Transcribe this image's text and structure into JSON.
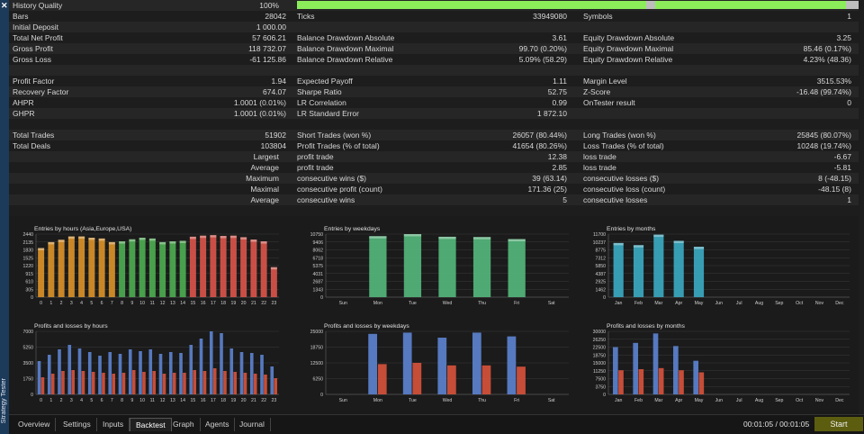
{
  "sidebar": {
    "close_label": "✕",
    "title": "Strategy Tester"
  },
  "stats": [
    {
      "c": [
        {
          "t": "History Quality",
          "x": 4
        },
        {
          "t": "100%",
          "x": 300,
          "w": 0,
          "r": true
        }
      ],
      "qbar": true
    },
    {
      "c": [
        {
          "t": "Bars"
        },
        {
          "t": "28042"
        },
        {
          "t": "Ticks"
        },
        {
          "t": "33949080"
        },
        {
          "t": "Symbols"
        },
        {
          "t": "1"
        }
      ]
    },
    {
      "c": [
        {
          "t": "Initial Deposit"
        },
        {
          "t": "1 000.00"
        }
      ]
    },
    {
      "c": [
        {
          "t": "Total Net Profit"
        },
        {
          "t": "57 606.21"
        },
        {
          "t": "Balance Drawdown Absolute"
        },
        {
          "t": "3.61"
        },
        {
          "t": "Equity Drawdown Absolute"
        },
        {
          "t": "3.25"
        }
      ]
    },
    {
      "c": [
        {
          "t": "Gross Profit"
        },
        {
          "t": "118 732.07"
        },
        {
          "t": "Balance Drawdown Maximal"
        },
        {
          "t": "99.70 (0.20%)"
        },
        {
          "t": "Equity Drawdown Maximal"
        },
        {
          "t": "85.46 (0.17%)"
        }
      ]
    },
    {
      "c": [
        {
          "t": "Gross Loss"
        },
        {
          "t": "-61 125.86"
        },
        {
          "t": "Balance Drawdown Relative"
        },
        {
          "t": "5.09% (58.29)"
        },
        {
          "t": "Equity Drawdown Relative"
        },
        {
          "t": "4.23% (48.36)"
        }
      ]
    },
    {
      "c": []
    },
    {
      "c": [
        {
          "t": "Profit Factor"
        },
        {
          "t": "1.94"
        },
        {
          "t": "Expected Payoff"
        },
        {
          "t": "1.11"
        },
        {
          "t": "Margin Level"
        },
        {
          "t": "3515.53%"
        }
      ]
    },
    {
      "c": [
        {
          "t": "Recovery Factor"
        },
        {
          "t": "674.07"
        },
        {
          "t": "Sharpe Ratio"
        },
        {
          "t": "52.75"
        },
        {
          "t": "Z-Score"
        },
        {
          "t": "-16.48 (99.74%)"
        }
      ]
    },
    {
      "c": [
        {
          "t": "AHPR"
        },
        {
          "t": "1.0001 (0.01%)"
        },
        {
          "t": "LR Correlation"
        },
        {
          "t": "0.99"
        },
        {
          "t": "OnTester result"
        },
        {
          "t": "0"
        }
      ]
    },
    {
      "c": [
        {
          "t": "GHPR"
        },
        {
          "t": "1.0001 (0.01%)"
        },
        {
          "t": "LR Standard Error"
        },
        {
          "t": "1 872.10"
        }
      ]
    },
    {
      "c": []
    },
    {
      "c": [
        {
          "t": "Total Trades"
        },
        {
          "t": "51902"
        },
        {
          "t": "Short Trades (won %)"
        },
        {
          "t": "26057 (80.44%)"
        },
        {
          "t": "Long Trades (won %)"
        },
        {
          "t": "25845 (80.07%)"
        }
      ]
    },
    {
      "c": [
        {
          "t": "Total Deals"
        },
        {
          "t": "103804"
        },
        {
          "t": "Profit Trades (% of total)"
        },
        {
          "t": "41654 (80.26%)"
        },
        {
          "t": "Loss Trades (% of total)"
        },
        {
          "t": "10248 (19.74%)"
        }
      ]
    },
    {
      "c": [
        {
          "t": "Largest",
          "k": "lab"
        },
        {
          "t": "profit trade"
        },
        {
          "t": "12.38"
        },
        {
          "t": "loss trade"
        },
        {
          "t": "-6.67"
        }
      ]
    },
    {
      "c": [
        {
          "t": "Average",
          "k": "lab"
        },
        {
          "t": "profit trade"
        },
        {
          "t": "2.85"
        },
        {
          "t": "loss trade"
        },
        {
          "t": "-5.81"
        }
      ]
    },
    {
      "c": [
        {
          "t": "Maximum",
          "k": "lab"
        },
        {
          "t": "consecutive wins ($)"
        },
        {
          "t": "39 (63.14)"
        },
        {
          "t": "consecutive losses ($)"
        },
        {
          "t": "8 (-48.15)"
        }
      ]
    },
    {
      "c": [
        {
          "t": "Maximal",
          "k": "lab"
        },
        {
          "t": "consecutive profit (count)"
        },
        {
          "t": "171.36 (25)"
        },
        {
          "t": "consecutive loss (count)"
        },
        {
          "t": "-48.15 (8)"
        }
      ]
    },
    {
      "c": [
        {
          "t": "Average",
          "k": "lab"
        },
        {
          "t": "consecutive wins"
        },
        {
          "t": "5"
        },
        {
          "t": "consecutive losses"
        },
        {
          "t": "1"
        }
      ]
    }
  ],
  "chart_data": [
    {
      "type": "bar",
      "title": "Entries by hours (Asia,Europe,USA)",
      "categories": [
        "0",
        "1",
        "2",
        "3",
        "4",
        "5",
        "6",
        "7",
        "8",
        "9",
        "10",
        "11",
        "12",
        "13",
        "14",
        "15",
        "16",
        "17",
        "18",
        "19",
        "20",
        "21",
        "22",
        "23"
      ],
      "yticks": [
        "0",
        "305",
        "610",
        "915",
        "1220",
        "1525",
        "1830",
        "2135",
        "2440"
      ],
      "ylim": [
        0,
        2440
      ],
      "values": [
        1900,
        2130,
        2220,
        2350,
        2350,
        2300,
        2270,
        2130,
        2160,
        2240,
        2300,
        2270,
        2130,
        2160,
        2180,
        2340,
        2380,
        2400,
        2370,
        2380,
        2320,
        2230,
        2160,
        1160
      ],
      "colors": [
        "#d89028",
        "#d89028",
        "#d89028",
        "#d89028",
        "#d89028",
        "#d89028",
        "#d89028",
        "#d89028",
        "#4caa50",
        "#4caa50",
        "#4caa50",
        "#4caa50",
        "#4caa50",
        "#4caa50",
        "#4caa50",
        "#d8544a",
        "#d8544a",
        "#d8544a",
        "#d8544a",
        "#d8544a",
        "#d8544a",
        "#d8544a",
        "#d8544a",
        "#d8544a"
      ]
    },
    {
      "type": "bar",
      "title": "Entries by weekdays",
      "categories": [
        "Sun",
        "Mon",
        "Tue",
        "Wed",
        "Thu",
        "Fri",
        "Sat"
      ],
      "yticks": [
        "0",
        "1343",
        "2687",
        "4031",
        "5375",
        "6718",
        "8062",
        "9406",
        "10750"
      ],
      "ylim": [
        0,
        10750
      ],
      "values": [
        0,
        10400,
        10750,
        10300,
        10250,
        9900,
        0
      ],
      "colors": [
        "#52b57a"
      ]
    },
    {
      "type": "bar",
      "title": "Entries by months",
      "categories": [
        "Jan",
        "Feb",
        "Mar",
        "Apr",
        "May",
        "Jun",
        "Jul",
        "Aug",
        "Sep",
        "Oct",
        "Nov",
        "Dec"
      ],
      "yticks": [
        "0",
        "1462",
        "2925",
        "4387",
        "5850",
        "7312",
        "8775",
        "10237",
        "11700"
      ],
      "ylim": [
        0,
        11700
      ],
      "values": [
        10050,
        9650,
        11600,
        10450,
        9350,
        0,
        0,
        0,
        0,
        0,
        0,
        0
      ],
      "colors": [
        "#3aa8c0"
      ]
    },
    {
      "type": "bar",
      "title": "Profits and losses by hours",
      "categories": [
        "0",
        "1",
        "2",
        "3",
        "4",
        "5",
        "6",
        "7",
        "8",
        "9",
        "10",
        "11",
        "12",
        "13",
        "14",
        "15",
        "16",
        "17",
        "18",
        "19",
        "20",
        "21",
        "22",
        "23"
      ],
      "yticks": [
        "0",
        "1750",
        "3500",
        "5250",
        "7000"
      ],
      "ylim": [
        0,
        7000
      ],
      "series": [
        {
          "color": "#5a7ec8",
          "values": [
            3700,
            4400,
            5000,
            5500,
            5100,
            4700,
            4300,
            4700,
            4500,
            5000,
            4800,
            5000,
            4500,
            4700,
            4600,
            5500,
            6200,
            7000,
            6800,
            5100,
            4700,
            4600,
            4400,
            3100
          ]
        },
        {
          "color": "#d0503a",
          "values": [
            1900,
            2300,
            2600,
            2700,
            2600,
            2500,
            2400,
            2300,
            2400,
            2700,
            2500,
            2600,
            2300,
            2400,
            2400,
            2700,
            2600,
            2900,
            2600,
            2500,
            2400,
            2300,
            2200,
            1800
          ]
        }
      ]
    },
    {
      "type": "bar",
      "title": "Profits and losses by weekdays",
      "categories": [
        "Sun",
        "Mon",
        "Tue",
        "Wed",
        "Thu",
        "Fri",
        "Sat"
      ],
      "yticks": [
        "0",
        "6250",
        "12500",
        "18750",
        "25000"
      ],
      "ylim": [
        0,
        25000
      ],
      "series": [
        {
          "color": "#5a7ec8",
          "values": [
            0,
            24000,
            24500,
            22500,
            24500,
            23000,
            0
          ]
        },
        {
          "color": "#d0503a",
          "values": [
            0,
            12000,
            12500,
            11500,
            11500,
            11000,
            0
          ]
        }
      ]
    },
    {
      "type": "bar",
      "title": "Profits and losses by months",
      "categories": [
        "Jan",
        "Feb",
        "Mar",
        "Apr",
        "May",
        "Jun",
        "Jul",
        "Aug",
        "Sep",
        "Oct",
        "Nov",
        "Dec"
      ],
      "yticks": [
        "0",
        "3750",
        "7500",
        "11250",
        "15000",
        "18750",
        "22500",
        "26250",
        "30000"
      ],
      "ylim": [
        0,
        30000
      ],
      "series": [
        {
          "color": "#5a7ec8",
          "values": [
            22500,
            24500,
            29000,
            23000,
            16000,
            0,
            0,
            0,
            0,
            0,
            0,
            0
          ]
        },
        {
          "color": "#d0503a",
          "values": [
            11500,
            12000,
            12500,
            11500,
            10500,
            0,
            0,
            0,
            0,
            0,
            0,
            0
          ]
        }
      ]
    }
  ],
  "tabs": [
    "Overview",
    "Settings",
    "Inputs",
    "Backtest",
    "Graph",
    "Agents",
    "Journal"
  ],
  "active_tab": "Backtest",
  "timer": "00:01:05 / 00:01:05",
  "start_label": "Start"
}
